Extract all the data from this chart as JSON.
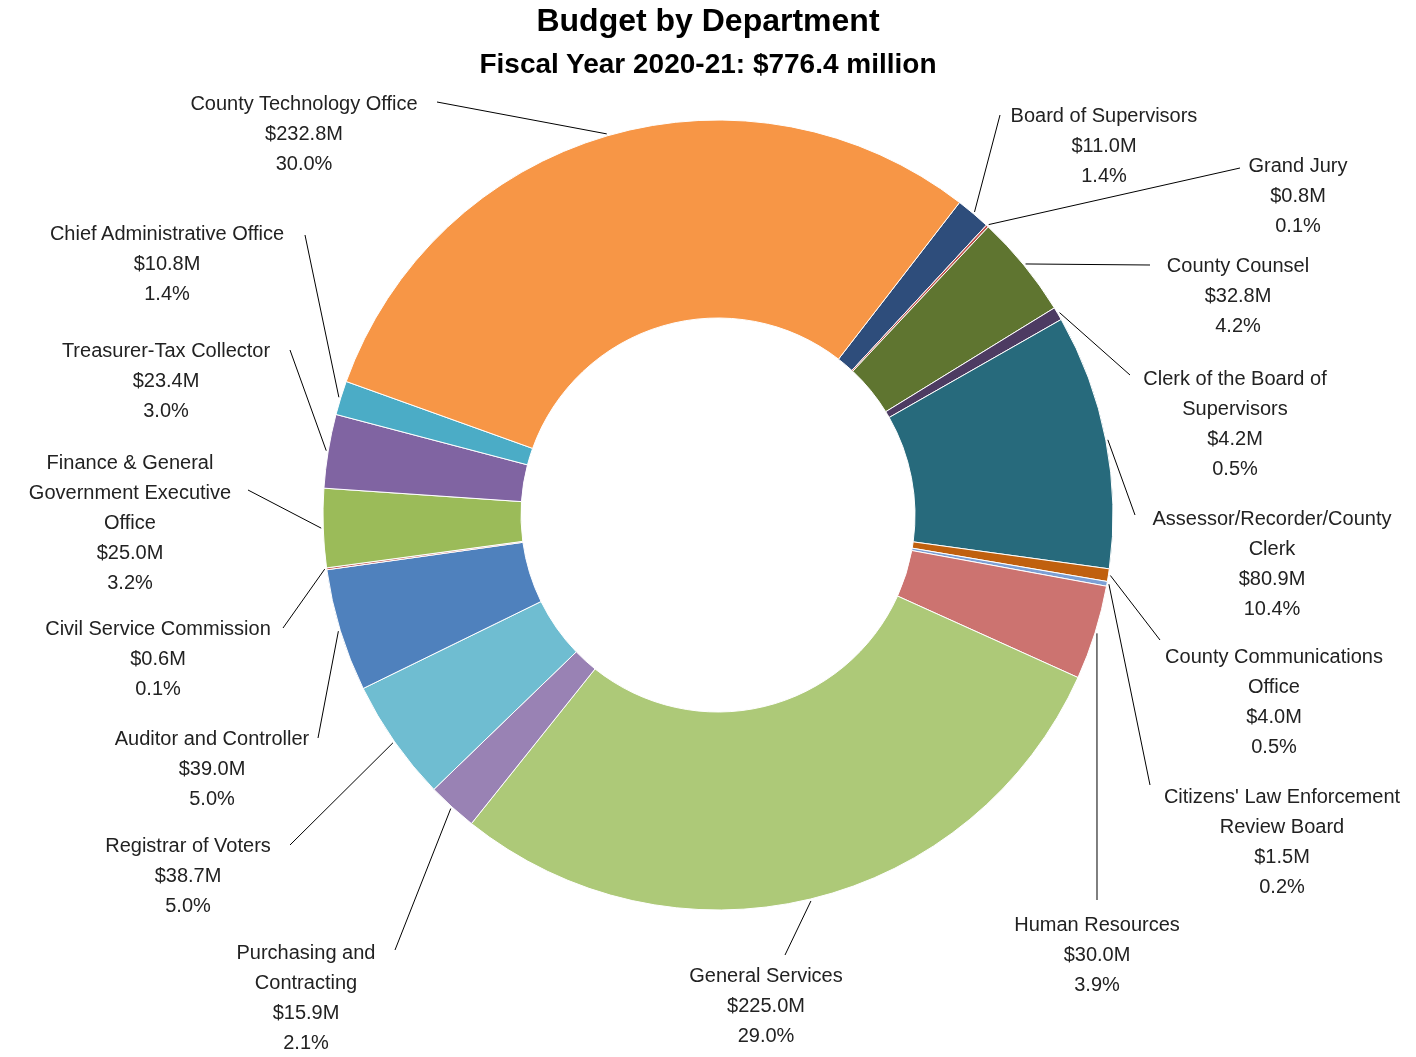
{
  "chart_data": {
    "type": "donut",
    "title": "Budget by Department",
    "subtitle": "Fiscal Year 2020-21: $776.4 million",
    "categories": [
      "Board of Supervisors",
      "Grand Jury",
      "County Counsel",
      "Clerk of the Board of Supervisors",
      "Assessor/Recorder/County Clerk",
      "County Communications Office",
      "Citizens' Law Enforcement Review Board",
      "Human Resources",
      "General Services",
      "Purchasing and Contracting",
      "Registrar of Voters",
      "Auditor and Controller",
      "Civil Service Commission",
      "Finance & General Government Executive Office",
      "Treasurer-Tax Collector",
      "Chief Administrative Office",
      "County Technology Office"
    ],
    "values": [
      11.0,
      0.8,
      32.8,
      4.2,
      80.9,
      4.0,
      1.5,
      30.0,
      225.0,
      15.9,
      38.7,
      39.0,
      0.6,
      25.0,
      23.4,
      10.8,
      232.8
    ],
    "value_labels": [
      "$11.0M",
      "$0.8M",
      "$32.8M",
      "$4.2M",
      "$80.9M",
      "$4.0M",
      "$1.5M",
      "$30.0M",
      "$225.0M",
      "$15.9M",
      "$38.7M",
      "$39.0M",
      "$0.6M",
      "$25.0M",
      "$23.4M",
      "$10.8M",
      "$232.8M"
    ],
    "annotations": [
      "1.4%",
      "0.1%",
      "4.2%",
      "0.5%",
      "10.4%",
      "0.5%",
      "0.2%",
      "3.9%",
      "29.0%",
      "2.1%",
      "5.0%",
      "5.0%",
      "0.1%",
      "3.2%",
      "3.0%",
      "1.4%",
      "30.0%"
    ],
    "colors": [
      "#2e4d7b",
      "#c0504d",
      "#5f7530",
      "#4d3b62",
      "#276a7c",
      "#c0600e",
      "#7c9fd4",
      "#cc7370",
      "#adc978",
      "#9982b4",
      "#6fbdd1",
      "#4f81bd",
      "#c0504d",
      "#9bbb59",
      "#8064a2",
      "#4bacc6",
      "#f79646"
    ]
  }
}
